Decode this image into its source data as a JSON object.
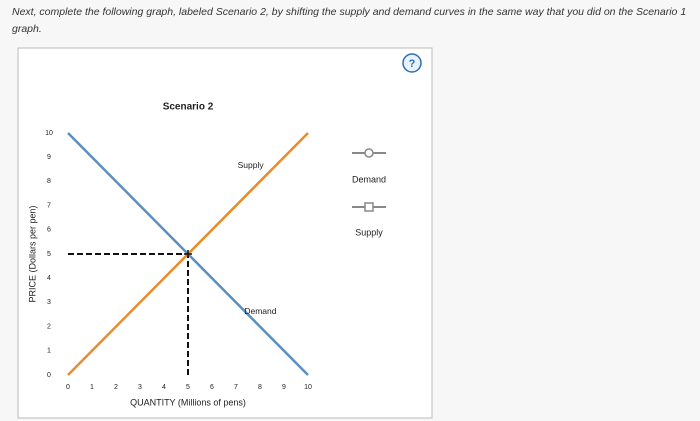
{
  "instruction": "Next, complete the following graph, labeled Scenario 2, by shifting the supply and demand curves in the same way that you did on the Scenario 1 graph.",
  "help_icon": "?",
  "chart_data": {
    "type": "line",
    "title": "Scenario 2",
    "x_label": "QUANTITY (Millions of pens)",
    "y_label": "PRICE (Dollars per pen)",
    "xlim": [
      0,
      10
    ],
    "ylim": [
      0,
      10
    ],
    "xticks": [
      0,
      1,
      2,
      3,
      4,
      5,
      6,
      7,
      8,
      9,
      10
    ],
    "yticks": [
      0,
      1,
      2,
      3,
      4,
      5,
      6,
      7,
      8,
      9,
      10
    ],
    "grid": false,
    "series": [
      {
        "name": "Demand",
        "color": "#5b8fc0",
        "x": [
          0,
          10
        ],
        "values": [
          10,
          0
        ]
      },
      {
        "name": "Supply",
        "color": "#ea8a2a",
        "x": [
          0,
          10
        ],
        "values": [
          0,
          10
        ]
      }
    ],
    "equilibrium": {
      "x": 5,
      "y": 5
    }
  }
}
